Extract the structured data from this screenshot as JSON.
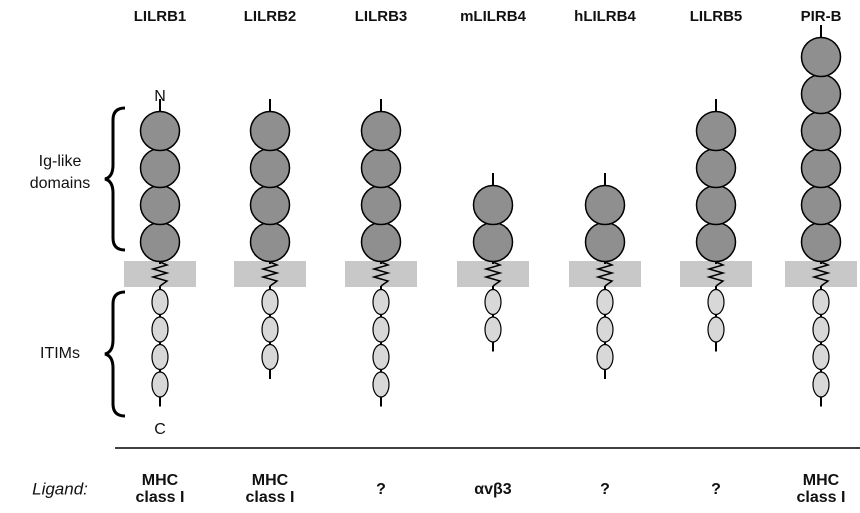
{
  "labels": {
    "n_terminus": "N",
    "c_terminus": "C",
    "ig_domains": [
      "Ig-like",
      "domains"
    ],
    "itims": "ITIMs",
    "ligand": "Ligand:"
  },
  "receptors": [
    {
      "name": "LILRB1",
      "domains": 4,
      "itims": 4,
      "ligand": [
        "MHC",
        "class I"
      ]
    },
    {
      "name": "LILRB2",
      "domains": 4,
      "itims": 3,
      "ligand": [
        "MHC",
        "class I"
      ]
    },
    {
      "name": "LILRB3",
      "domains": 4,
      "itims": 4,
      "ligand": [
        "?"
      ]
    },
    {
      "name": "mLILRB4",
      "domains": 2,
      "itims": 2,
      "ligand": [
        "αvβ3"
      ]
    },
    {
      "name": "hLILRB4",
      "domains": 2,
      "itims": 3,
      "ligand": [
        "?"
      ]
    },
    {
      "name": "LILRB5",
      "domains": 4,
      "itims": 2,
      "ligand": [
        "?"
      ]
    },
    {
      "name": "PIR-B",
      "domains": 6,
      "itims": 4,
      "ligand": [
        "MHC",
        "class I"
      ]
    }
  ]
}
